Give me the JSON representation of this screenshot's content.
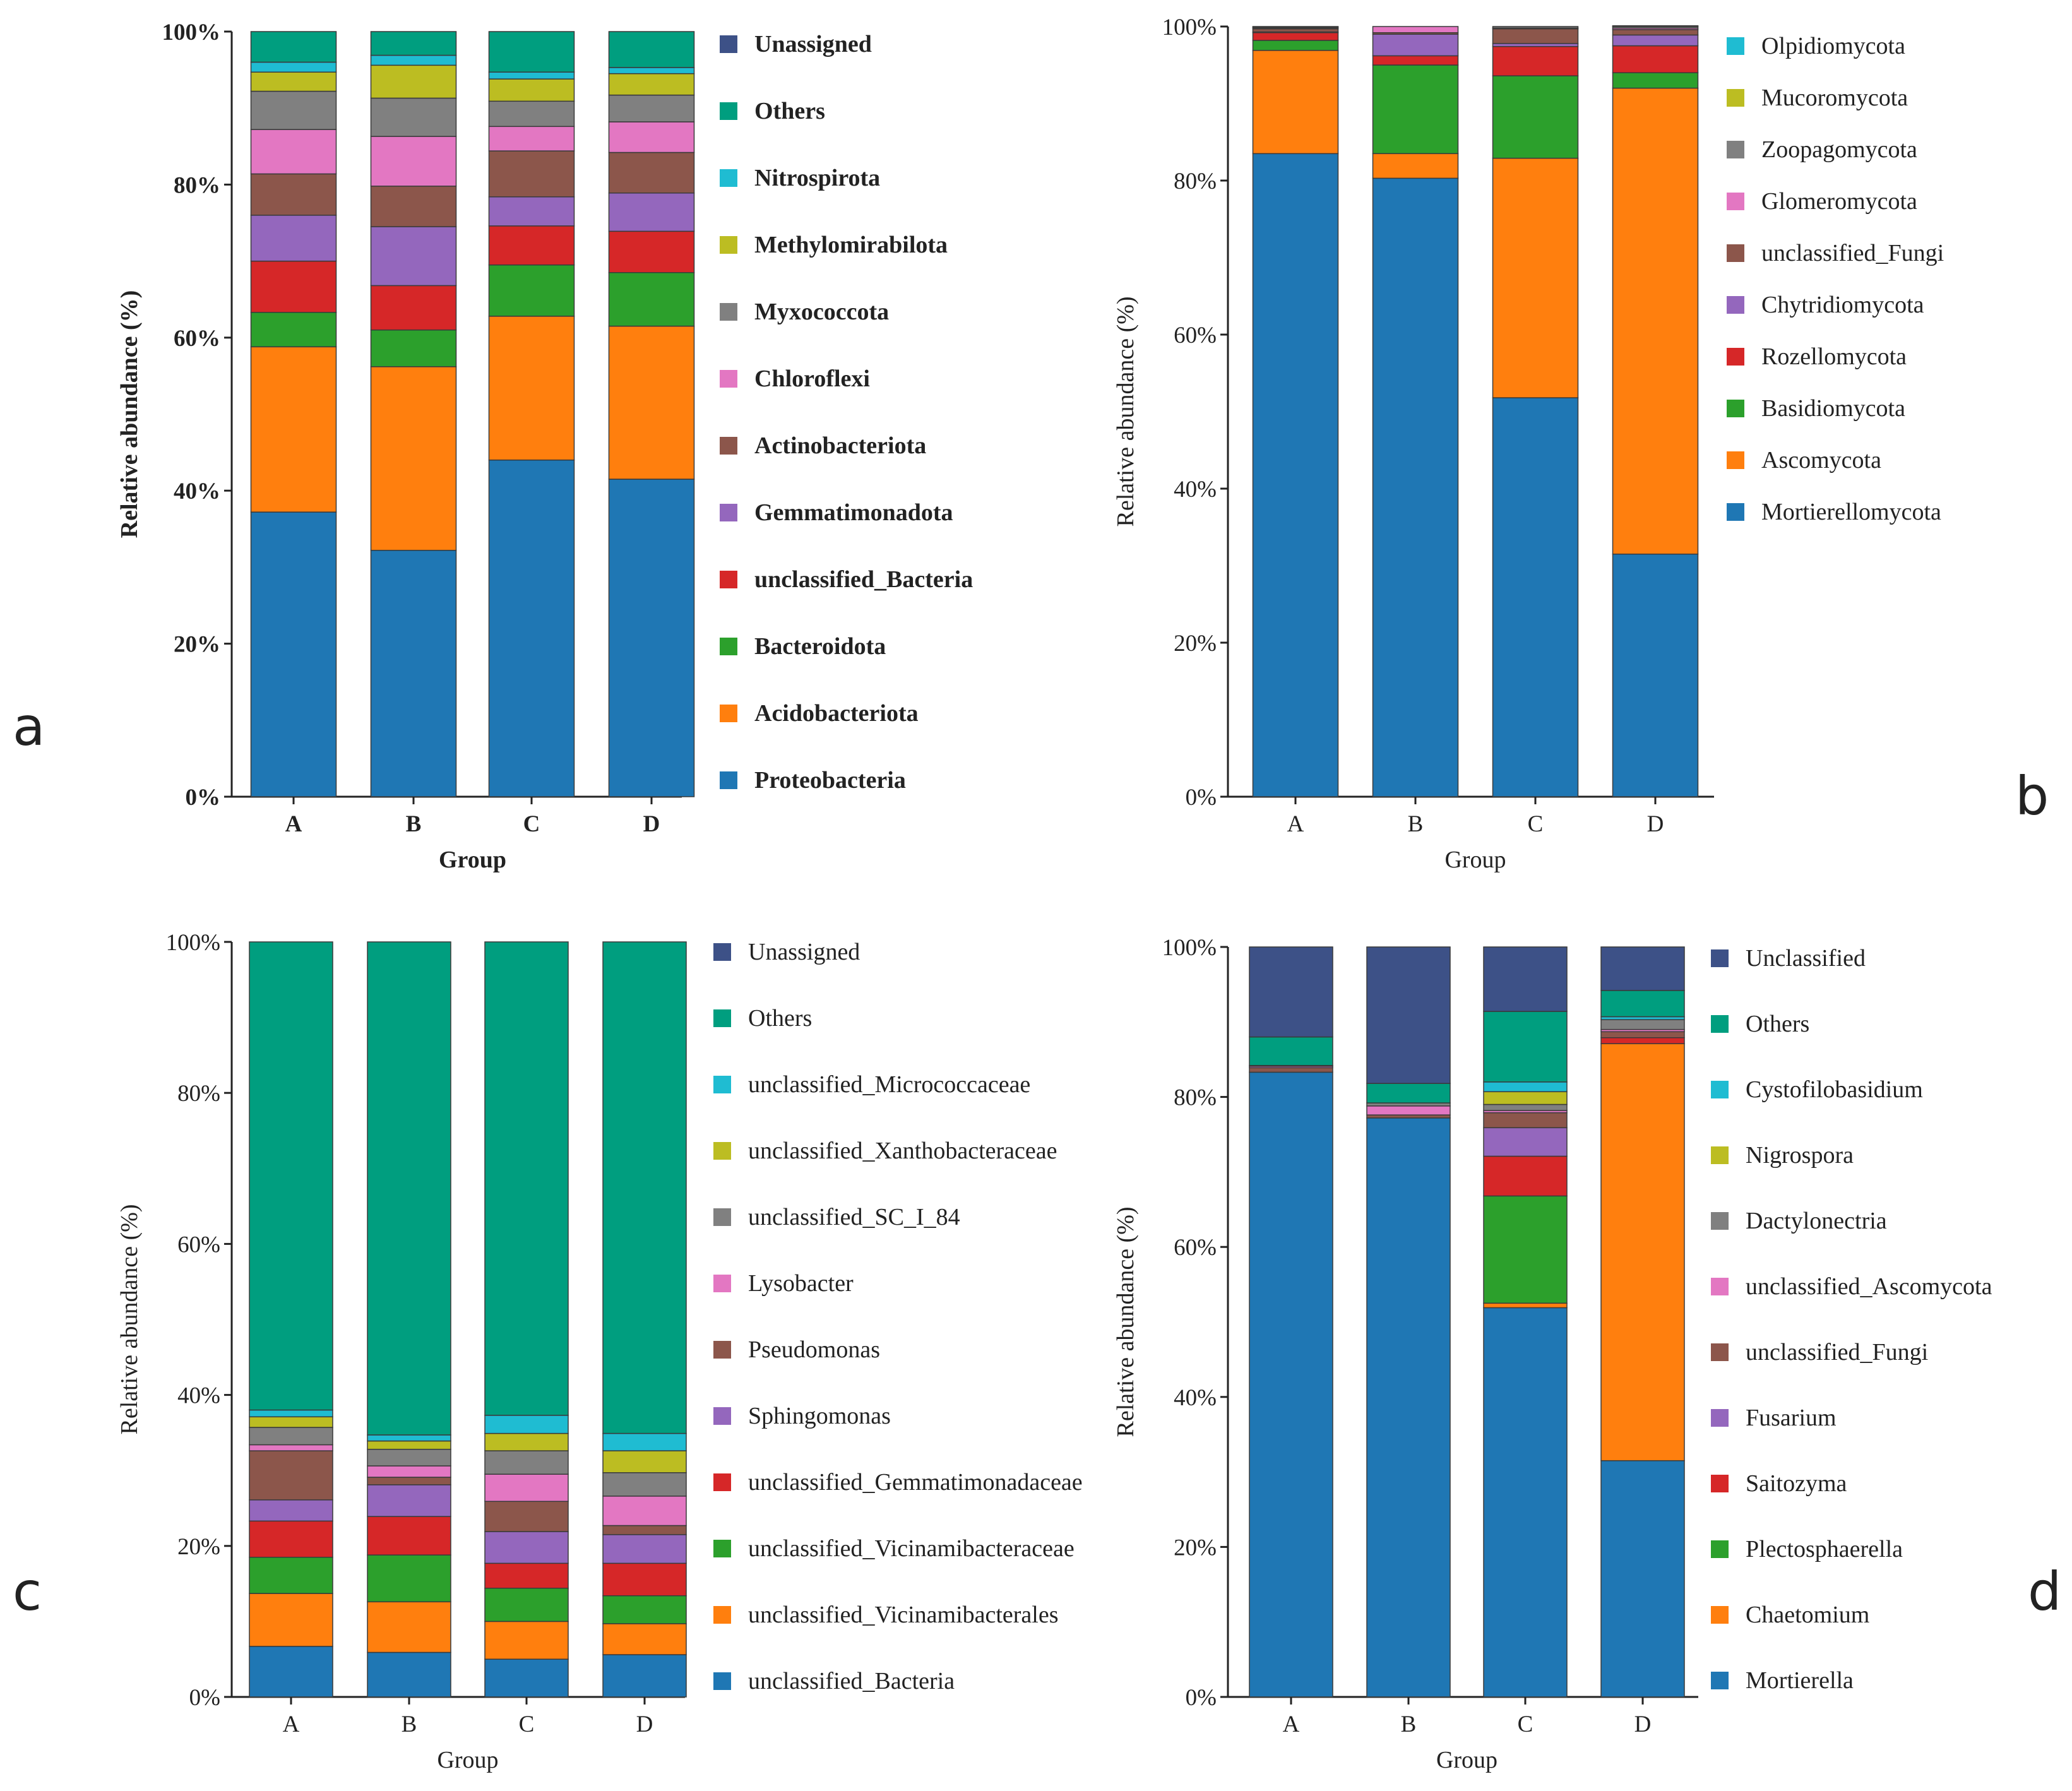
{
  "palette": {
    "Unassigned": "#3d5187",
    "Unclassified": "#3d5187",
    "Others": "#009e7f",
    "Nitrospirota": "#1fbcd2",
    "Olpidiomycota": "#1fbcd2",
    "unclassified_Micrococcaceae": "#1fbcd2",
    "Cystofilobasidium": "#1fbcd2",
    "Methylomirabilota": "#bcbd22",
    "Mucoromycota": "#bcbd22",
    "unclassified_Xanthobacteraceae": "#bcbd22",
    "Nigrospora": "#bcbd22",
    "Myxococcota": "#808080",
    "Zoopagomycota": "#808080",
    "unclassified_SC_I_84": "#808080",
    "Dactylonectria": "#808080",
    "Chloroflexi": "#e377c2",
    "Glomeromycota": "#e377c2",
    "Lysobacter": "#e377c2",
    "unclassified_Ascomycota": "#e377c2",
    "Actinobacteriota": "#8c564b",
    "unclassified_Fungi": "#8c564b",
    "Pseudomonas": "#8c564b",
    "Gemmatimonadota": "#9467bd",
    "Chytridiomycota": "#9467bd",
    "Sphingomonas": "#9467bd",
    "Fusarium": "#9467bd",
    "unclassified_Bacteria": "#d62728",
    "Rozellomycota": "#d62728",
    "unclassified_Gemmatimonadaceae": "#d62728",
    "Saitozyma": "#d62728",
    "Bacteroidota": "#2ca02c",
    "Basidiomycota": "#2ca02c",
    "unclassified_Vicinamibacteraceae": "#2ca02c",
    "Plectosphaerella": "#2ca02c",
    "Acidobacteriota": "#ff7f0e",
    "Ascomycota": "#ff7f0e",
    "unclassified_Vicinamibacterales": "#ff7f0e",
    "Chaetomium": "#ff7f0e",
    "Proteobacteria": "#1f77b4",
    "Mortierellomycota": "#1f77b4",
    "unclassified_Bacteria_genus": "#1f77b4",
    "Mortierella": "#1f77b4"
  },
  "chart_data": [
    {
      "type": "bar",
      "stacked": true,
      "panel_label": "a",
      "xlabel": "Group",
      "ylabel": "Relative abundance (%)",
      "ylim": [
        0,
        100
      ],
      "yticks": [
        "0%",
        "20%",
        "40%",
        "60%",
        "80%",
        "100%"
      ],
      "categories": [
        "A",
        "B",
        "C",
        "D"
      ],
      "legend_bold": true,
      "series": [
        {
          "name": "Proteobacteria",
          "color_key": "Proteobacteria",
          "values": [
            37.2,
            32.2,
            44.0,
            41.5
          ]
        },
        {
          "name": "Acidobacteriota",
          "color_key": "Acidobacteriota",
          "values": [
            21.6,
            24.0,
            18.8,
            20.0
          ]
        },
        {
          "name": "Bacteroidota",
          "color_key": "Bacteroidota",
          "values": [
            4.5,
            4.8,
            6.7,
            7.0
          ]
        },
        {
          "name": "unclassified_Bacteria",
          "color_key": "unclassified_Bacteria",
          "values": [
            6.7,
            5.8,
            5.1,
            5.4
          ]
        },
        {
          "name": "Gemmatimonadota",
          "color_key": "Gemmatimonadota",
          "values": [
            6.0,
            7.7,
            3.8,
            5.0
          ]
        },
        {
          "name": "Actinobacteriota",
          "color_key": "Actinobacteriota",
          "values": [
            5.4,
            5.3,
            6.0,
            5.3
          ]
        },
        {
          "name": "Chloroflexi",
          "color_key": "Chloroflexi",
          "values": [
            5.8,
            6.5,
            3.2,
            4.0
          ]
        },
        {
          "name": "Myxococcota",
          "color_key": "Myxococcota",
          "values": [
            5.0,
            5.0,
            3.3,
            3.5
          ]
        },
        {
          "name": "Methylomirabilota",
          "color_key": "Methylomirabilota",
          "values": [
            2.5,
            4.3,
            2.9,
            2.8
          ]
        },
        {
          "name": "Nitrospirota",
          "color_key": "Nitrospirota",
          "values": [
            1.3,
            1.3,
            0.9,
            0.8
          ]
        },
        {
          "name": "Others",
          "color_key": "Others",
          "values": [
            4.0,
            3.1,
            5.3,
            4.7
          ]
        },
        {
          "name": "Unassigned",
          "color_key": "Unassigned",
          "values": [
            0.0,
            0.0,
            0.0,
            0.0
          ]
        }
      ]
    },
    {
      "type": "bar",
      "stacked": true,
      "panel_label": "b",
      "xlabel": "Group",
      "ylabel": "Relative abundance (%)",
      "ylim": [
        0,
        100
      ],
      "yticks": [
        "0%",
        "20%",
        "40%",
        "60%",
        "80%",
        "100%"
      ],
      "categories": [
        "A",
        "B",
        "C",
        "D"
      ],
      "legend_bold": false,
      "series": [
        {
          "name": "Mortierellomycota",
          "color_key": "Mortierellomycota",
          "values": [
            83.5,
            80.3,
            51.8,
            31.5
          ]
        },
        {
          "name": "Ascomycota",
          "color_key": "Ascomycota",
          "values": [
            13.4,
            3.2,
            31.1,
            60.5
          ]
        },
        {
          "name": "Basidiomycota",
          "color_key": "Basidiomycota",
          "values": [
            1.3,
            11.5,
            10.7,
            2.0
          ]
        },
        {
          "name": "Rozellomycota",
          "color_key": "Rozellomycota",
          "values": [
            1.0,
            1.2,
            3.8,
            3.5
          ]
        },
        {
          "name": "Chytridiomycota",
          "color_key": "Chytridiomycota",
          "values": [
            0.1,
            2.8,
            0.4,
            1.4
          ]
        },
        {
          "name": "unclassified_Fungi",
          "color_key": "unclassified_Fungi",
          "values": [
            0.4,
            0.2,
            1.9,
            0.7
          ]
        },
        {
          "name": "Glomeromycota",
          "color_key": "Glomeromycota",
          "values": [
            0.1,
            0.8,
            0.1,
            0.2
          ]
        },
        {
          "name": "Zoopagomycota",
          "color_key": "Zoopagomycota",
          "values": [
            0.1,
            0.0,
            0.2,
            0.2
          ]
        },
        {
          "name": "Mucoromycota",
          "color_key": "Mucoromycota",
          "values": [
            0.05,
            0.0,
            0.0,
            0.05
          ]
        },
        {
          "name": "Olpidiomycota",
          "color_key": "Olpidiomycota",
          "values": [
            0.05,
            0.0,
            0.0,
            0.05
          ]
        }
      ]
    },
    {
      "type": "bar",
      "stacked": true,
      "panel_label": "c",
      "xlabel": "Group",
      "ylabel": "Relative abundance (%)",
      "ylim": [
        0,
        100
      ],
      "yticks": [
        "0%",
        "20%",
        "40%",
        "60%",
        "80%",
        "100%"
      ],
      "categories": [
        "A",
        "B",
        "C",
        "D"
      ],
      "legend_bold": false,
      "series": [
        {
          "name": "unclassified_Bacteria",
          "color_key": "unclassified_Bacteria_genus",
          "values": [
            6.7,
            5.9,
            5.0,
            5.6
          ]
        },
        {
          "name": "unclassified_Vicinamibacterales",
          "color_key": "unclassified_Vicinamibacterales",
          "values": [
            7.0,
            6.7,
            5.0,
            4.1
          ]
        },
        {
          "name": "unclassified_Vicinamibacteraceae",
          "color_key": "unclassified_Vicinamibacteraceae",
          "values": [
            4.8,
            6.2,
            4.4,
            3.7
          ]
        },
        {
          "name": "unclassified_Gemmatimonadaceae",
          "color_key": "unclassified_Gemmatimonadaceae",
          "values": [
            4.8,
            5.1,
            3.3,
            4.3
          ]
        },
        {
          "name": "Sphingomonas",
          "color_key": "Sphingomonas",
          "values": [
            2.8,
            4.2,
            4.2,
            3.8
          ]
        },
        {
          "name": "Pseudomonas",
          "color_key": "Pseudomonas",
          "values": [
            6.5,
            1.0,
            4.0,
            1.2
          ]
        },
        {
          "name": "Lysobacter",
          "color_key": "Lysobacter",
          "values": [
            0.8,
            1.5,
            3.6,
            3.9
          ]
        },
        {
          "name": "unclassified_SC_I_84",
          "color_key": "unclassified_SC_I_84",
          "values": [
            2.3,
            2.2,
            3.1,
            3.1
          ]
        },
        {
          "name": "unclassified_Xanthobacteraceae",
          "color_key": "unclassified_Xanthobacteraceae",
          "values": [
            1.4,
            1.1,
            2.3,
            2.9
          ]
        },
        {
          "name": "unclassified_Micrococcaceae",
          "color_key": "unclassified_Micrococcaceae",
          "values": [
            0.9,
            0.8,
            2.4,
            2.3
          ]
        },
        {
          "name": "Others",
          "color_key": "Others",
          "values": [
            62.0,
            65.3,
            62.7,
            65.1
          ]
        },
        {
          "name": "Unassigned",
          "color_key": "Unassigned",
          "values": [
            0.0,
            0.0,
            0.0,
            0.0
          ]
        }
      ]
    },
    {
      "type": "bar",
      "stacked": true,
      "panel_label": "d",
      "xlabel": "Group",
      "ylabel": "Relative abundance (%)",
      "ylim": [
        0,
        100
      ],
      "yticks": [
        "0%",
        "20%",
        "40%",
        "60%",
        "80%",
        "100%"
      ],
      "categories": [
        "A",
        "B",
        "C",
        "D"
      ],
      "legend_bold": false,
      "series": [
        {
          "name": "Mortierella",
          "color_key": "Mortierella",
          "values": [
            83.3,
            77.2,
            51.9,
            31.5
          ]
        },
        {
          "name": "Chaetomium",
          "color_key": "Chaetomium",
          "values": [
            0.0,
            0.0,
            0.6,
            55.6
          ]
        },
        {
          "name": "Plectosphaerella",
          "color_key": "Plectosphaerella",
          "values": [
            0.0,
            0.0,
            14.3,
            0.0
          ]
        },
        {
          "name": "Saitozyma",
          "color_key": "Saitozyma",
          "values": [
            0.0,
            0.0,
            5.3,
            0.8
          ]
        },
        {
          "name": "Fusarium",
          "color_key": "Fusarium",
          "values": [
            0.0,
            0.0,
            3.8,
            0.0
          ]
        },
        {
          "name": "unclassified_Fungi",
          "color_key": "unclassified_Fungi",
          "values": [
            0.6,
            0.4,
            2.0,
            0.8
          ]
        },
        {
          "name": "unclassified_Ascomycota",
          "color_key": "unclassified_Ascomycota",
          "values": [
            0.2,
            1.2,
            0.3,
            0.3
          ]
        },
        {
          "name": "Dactylonectria",
          "color_key": "Dactylonectria",
          "values": [
            0.1,
            0.4,
            0.8,
            1.3
          ]
        },
        {
          "name": "Nigrospora",
          "color_key": "Nigrospora",
          "values": [
            0.0,
            0.0,
            1.7,
            0.0
          ]
        },
        {
          "name": "Cystofilobasidium",
          "color_key": "Cystofilobasidium",
          "values": [
            0.0,
            0.0,
            1.3,
            0.4
          ]
        },
        {
          "name": "Others",
          "color_key": "Others",
          "values": [
            3.8,
            2.6,
            9.4,
            3.5
          ]
        },
        {
          "name": "Unclassified",
          "color_key": "Unclassified",
          "values": [
            12.0,
            18.2,
            8.6,
            5.8
          ]
        }
      ]
    }
  ]
}
